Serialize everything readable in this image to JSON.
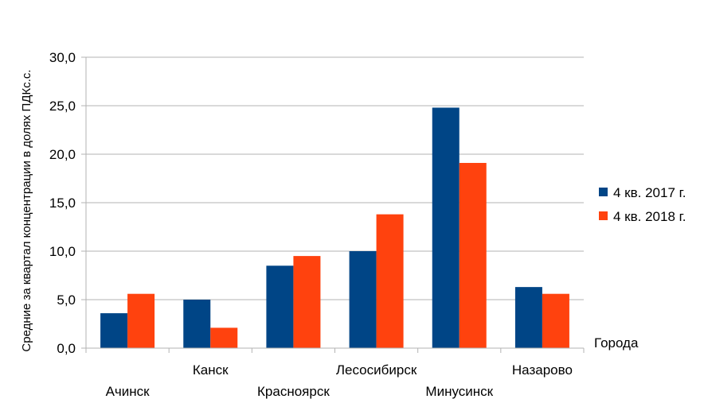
{
  "chart_data": {
    "type": "bar",
    "title": "",
    "xlabel": "Города",
    "ylabel": "Средние за квартал концентрации в долях ПДКс.с.",
    "ylim": [
      0,
      30
    ],
    "yticks": [
      "0,0",
      "5,0",
      "10,0",
      "15,0",
      "20,0",
      "25,0",
      "30,0"
    ],
    "grid": true,
    "legend_position": "right",
    "categories": [
      "Ачинск",
      "Канск",
      "Красноярск",
      "Лесосибирск",
      "Минусинск",
      "Назарово"
    ],
    "series": [
      {
        "name": "4 кв. 2017 г.",
        "color": "#004586",
        "values": [
          3.6,
          5.0,
          8.5,
          10.0,
          24.8,
          6.3
        ]
      },
      {
        "name": "4 кв. 2018 г.",
        "color": "#ff420e",
        "values": [
          5.6,
          2.1,
          9.5,
          13.8,
          19.1,
          5.6
        ]
      }
    ]
  }
}
